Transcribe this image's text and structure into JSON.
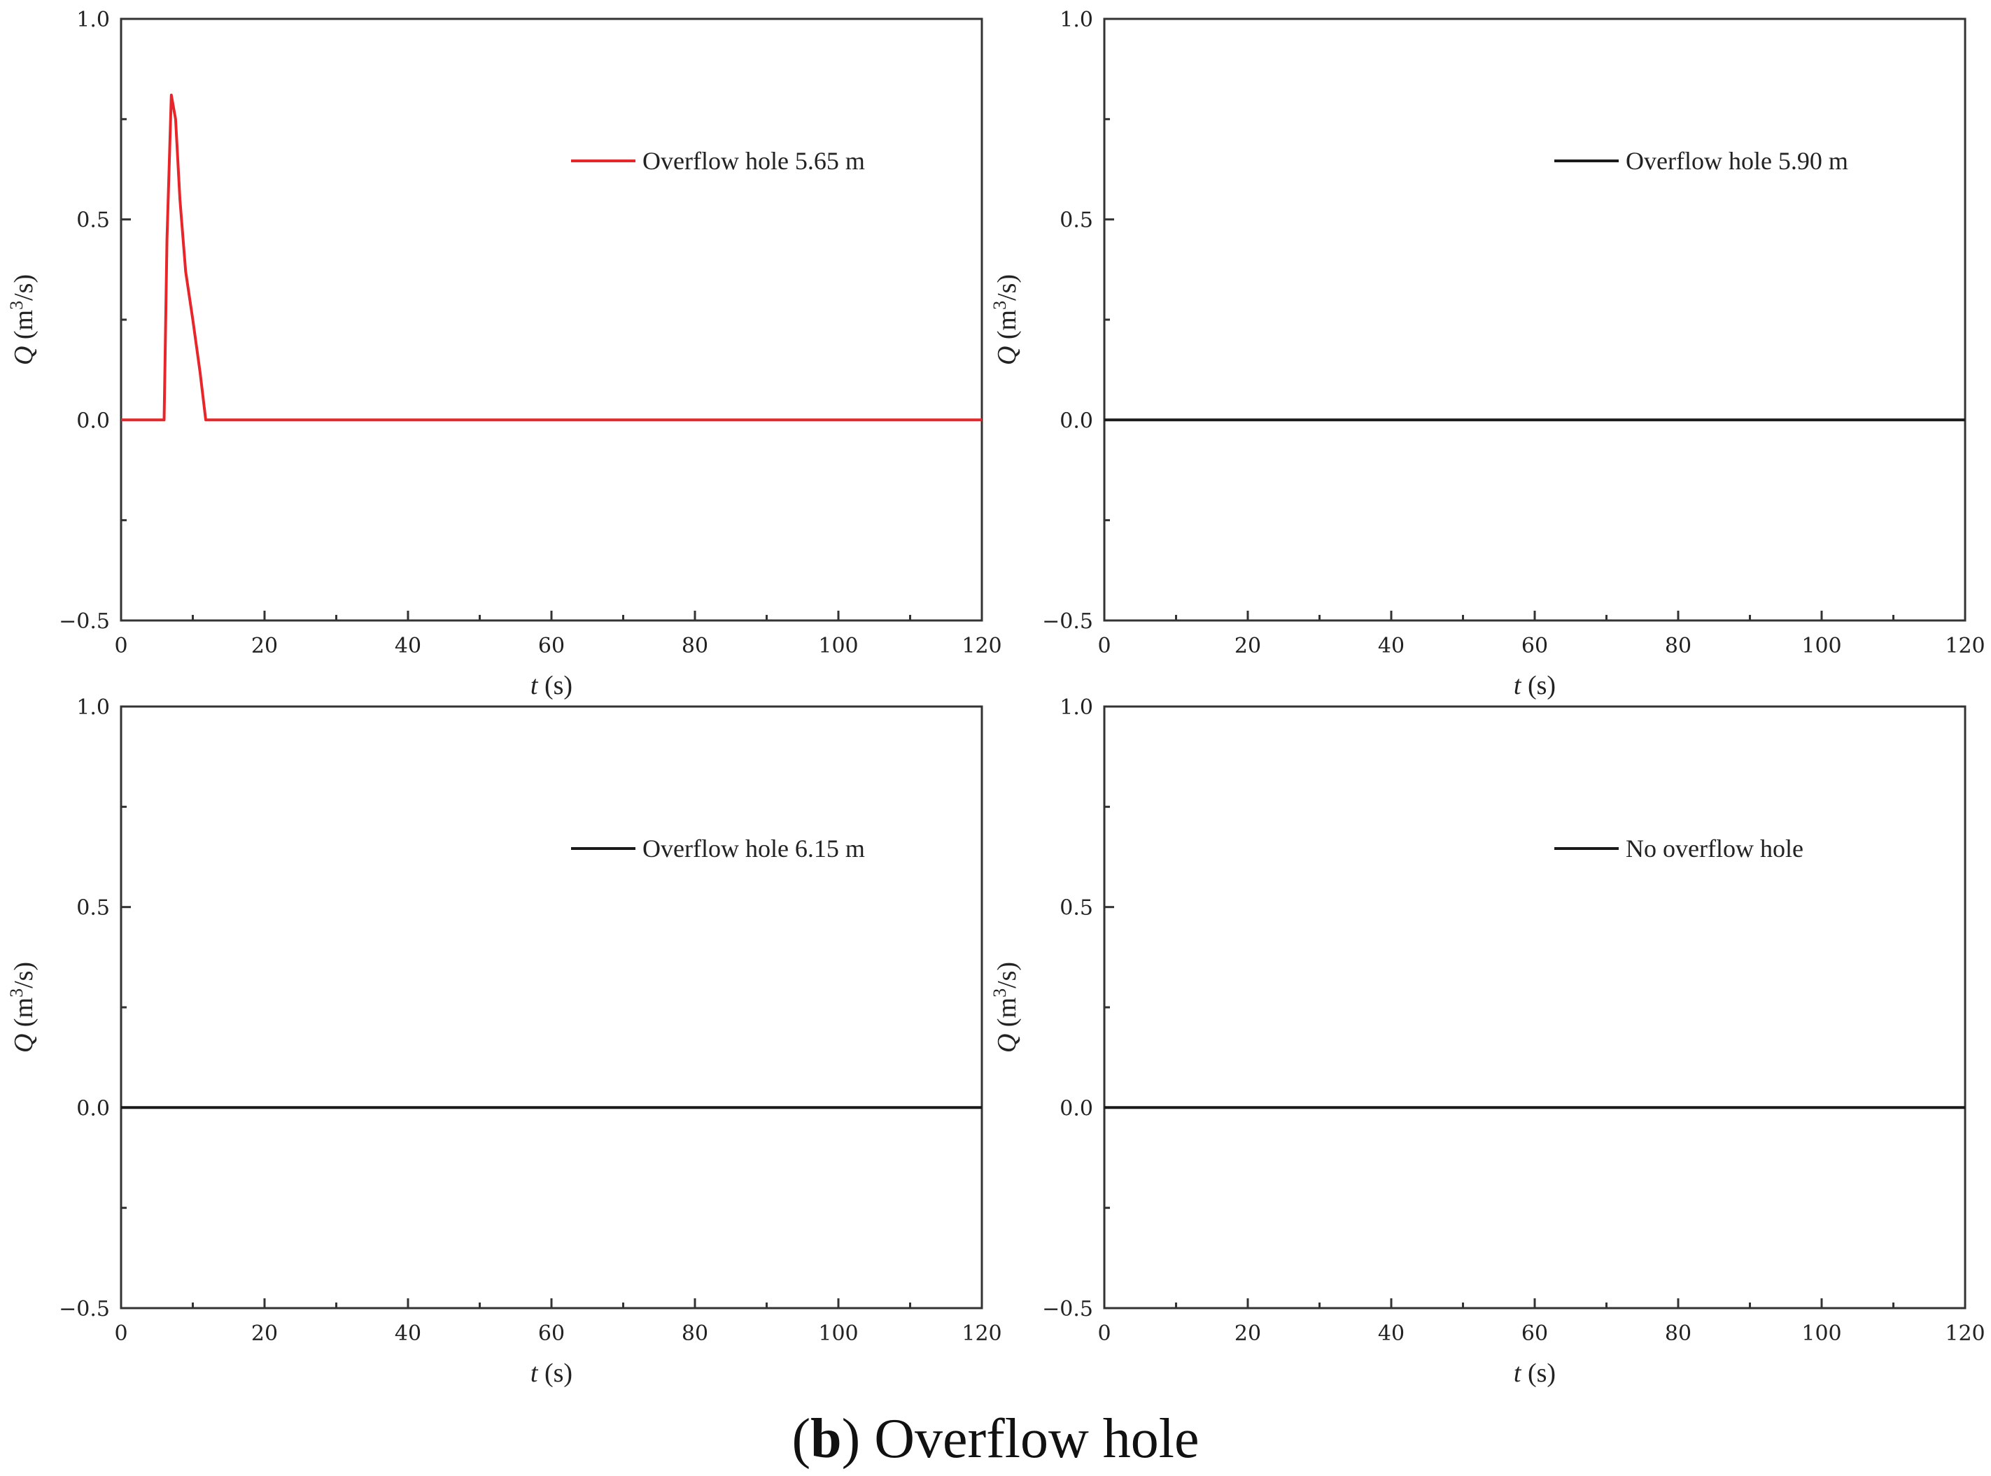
{
  "caption": {
    "letter": "b",
    "text": "Overflow hole"
  },
  "chart_data": [
    {
      "type": "line",
      "xlabel": "t (s)",
      "ylabel": "Q (m3/s)",
      "xlim": [
        0,
        120
      ],
      "ylim": [
        -0.5,
        1.0
      ],
      "xticks": [
        0,
        20,
        40,
        60,
        80,
        100,
        120
      ],
      "yticks": [
        -0.5,
        0.0,
        0.5,
        1.0
      ],
      "ytick_labels": [
        "−0.5",
        "0.0",
        "0.5",
        "1.0"
      ],
      "legend_position": "top-right",
      "series": [
        {
          "name": "Overflow hole 5.65 m",
          "color": "#e8262a",
          "x": [
            0,
            6,
            6.4,
            7.0,
            7.6,
            8.2,
            9.0,
            10.0,
            11.0,
            11.8,
            12.0,
            120
          ],
          "y": [
            0,
            0,
            0.45,
            0.81,
            0.75,
            0.55,
            0.37,
            0.25,
            0.12,
            0.0,
            0,
            0
          ]
        }
      ]
    },
    {
      "type": "line",
      "xlabel": "t (s)",
      "ylabel": "Q (m3/s)",
      "xlim": [
        0,
        120
      ],
      "ylim": [
        -0.5,
        1.0
      ],
      "xticks": [
        0,
        20,
        40,
        60,
        80,
        100,
        120
      ],
      "yticks": [
        -0.5,
        0.0,
        0.5,
        1.0
      ],
      "ytick_labels": [
        "−0.5",
        "0.0",
        "0.5",
        "1.0"
      ],
      "legend_position": "top-right",
      "series": [
        {
          "name": "Overflow hole 5.90 m",
          "color": "#1a1a1a",
          "x": [
            0,
            120
          ],
          "y": [
            0,
            0
          ]
        }
      ]
    },
    {
      "type": "line",
      "xlabel": "t (s)",
      "ylabel": "Q (m3/s)",
      "xlim": [
        0,
        120
      ],
      "ylim": [
        -0.5,
        1.0
      ],
      "xticks": [
        0,
        20,
        40,
        60,
        80,
        100,
        120
      ],
      "yticks": [
        -0.5,
        0.0,
        0.5,
        1.0
      ],
      "ytick_labels": [
        "−0.5",
        "0.0",
        "0.5",
        "1.0"
      ],
      "legend_position": "top-right",
      "series": [
        {
          "name": "Overflow hole 6.15 m",
          "color": "#1a1a1a",
          "x": [
            0,
            120
          ],
          "y": [
            0,
            0
          ]
        }
      ]
    },
    {
      "type": "line",
      "xlabel": "t (s)",
      "ylabel": "Q (m3/s)",
      "xlim": [
        0,
        120
      ],
      "ylim": [
        -0.5,
        1.0
      ],
      "xticks": [
        0,
        20,
        40,
        60,
        80,
        100,
        120
      ],
      "yticks": [
        -0.5,
        0.0,
        0.5,
        1.0
      ],
      "ytick_labels": [
        "−0.5",
        "0.0",
        "0.5",
        "1.0"
      ],
      "legend_position": "top-right",
      "series": [
        {
          "name": "No overflow hole",
          "color": "#1a1a1a",
          "x": [
            0,
            120
          ],
          "y": [
            0,
            0
          ]
        }
      ]
    }
  ]
}
